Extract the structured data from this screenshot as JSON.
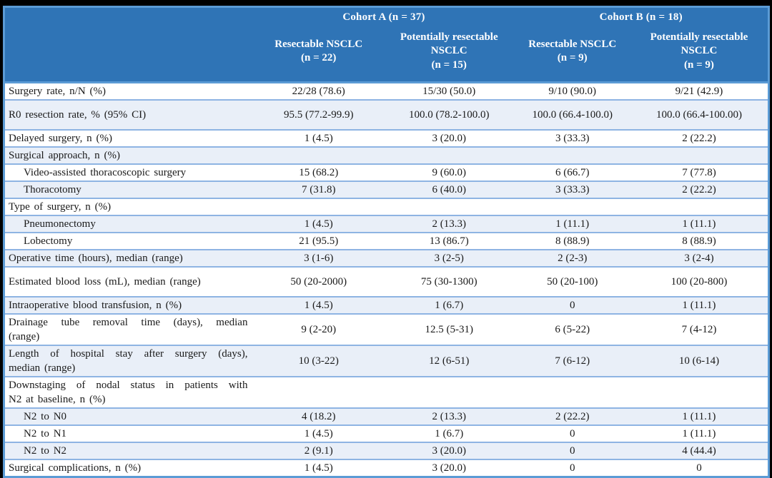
{
  "colors": {
    "page_bg": "#000000",
    "header_bg": "#2F74B6",
    "frame_border": "#5B9BD5",
    "row_alt_bg": "#E9EFF8",
    "row_border": "#8EB4E3",
    "body_text": "#1A1A1A",
    "header_text": "#FFFFFF"
  },
  "table": {
    "groups": [
      {
        "label": "Cohort A (n = 37)"
      },
      {
        "label": "Cohort B (n = 18)"
      }
    ],
    "columns": [
      {
        "title": "Resectable NSCLC",
        "n": "(n = 22)"
      },
      {
        "title": "Potentially resectable NSCLC",
        "n": "(n = 15)"
      },
      {
        "title": "Resectable NSCLC",
        "n": "(n = 9)"
      },
      {
        "title": "Potentially resectable NSCLC",
        "n": "(n = 9)"
      }
    ],
    "rows": [
      {
        "label": "Surgery rate, n/N (%)",
        "indent": false,
        "tall": false,
        "values": [
          "22/28 (78.6)",
          "15/30 (50.0)",
          "9/10 (90.0)",
          "9/21 (42.9)"
        ]
      },
      {
        "label": "R0 resection rate, % (95% CI)",
        "indent": false,
        "tall": true,
        "values": [
          "95.5 (77.2-99.9)",
          "100.0 (78.2-100.0)",
          "100.0 (66.4-100.0)",
          "100.0 (66.4-100.00)"
        ]
      },
      {
        "label": "Delayed surgery, n (%)",
        "indent": false,
        "tall": false,
        "values": [
          "1 (4.5)",
          "3 (20.0)",
          "3 (33.3)",
          "2 (22.2)"
        ]
      },
      {
        "label": "Surgical approach, n (%)",
        "indent": false,
        "tall": false,
        "values": [
          "",
          "",
          "",
          ""
        ]
      },
      {
        "label": "Video-assisted thoracoscopic surgery",
        "indent": true,
        "tall": false,
        "values": [
          "15 (68.2)",
          "9 (60.0)",
          "6 (66.7)",
          "7 (77.8)"
        ]
      },
      {
        "label": "Thoracotomy",
        "indent": true,
        "tall": false,
        "values": [
          "7 (31.8)",
          "6 (40.0)",
          "3 (33.3)",
          "2 (22.2)"
        ]
      },
      {
        "label": "Type of surgery, n (%)",
        "indent": false,
        "tall": false,
        "values": [
          "",
          "",
          "",
          ""
        ]
      },
      {
        "label": "Pneumonectomy",
        "indent": true,
        "tall": false,
        "values": [
          "1 (4.5)",
          "2 (13.3)",
          "1 (11.1)",
          "1 (11.1)"
        ]
      },
      {
        "label": "Lobectomy",
        "indent": true,
        "tall": false,
        "values": [
          "21 (95.5)",
          "13 (86.7)",
          "8 (88.9)",
          "8 (88.9)"
        ]
      },
      {
        "label": "Operative time (hours), median (range)",
        "indent": false,
        "tall": false,
        "values": [
          "3 (1-6)",
          "3 (2-5)",
          "2 (2-3)",
          "3 (2-4)"
        ]
      },
      {
        "label": "Estimated blood loss (mL), median (range)",
        "indent": false,
        "tall": true,
        "values": [
          "50 (20-2000)",
          "75 (30-1300)",
          "50 (20-100)",
          "100 (20-800)"
        ]
      },
      {
        "label": "Intraoperative blood transfusion, n (%)",
        "indent": false,
        "tall": false,
        "values": [
          "1 (4.5)",
          "1 (6.7)",
          "0",
          "1 (11.1)"
        ]
      },
      {
        "label": "Drainage tube removal time (days), median",
        "label2": "(range)",
        "indent": false,
        "tall": false,
        "values": [
          "9 (2-20)",
          "12.5 (5-31)",
          "6 (5-22)",
          "7 (4-12)"
        ]
      },
      {
        "label": "Length of hospital stay after surgery (days),",
        "label2": "median (range)",
        "indent": false,
        "tall": false,
        "values": [
          "10 (3-22)",
          "12 (6-51)",
          "7 (6-12)",
          "10 (6-14)"
        ]
      },
      {
        "label": "Downstaging of nodal status in patients with",
        "label2": "N2 at baseline, n (%)",
        "indent": false,
        "tall": false,
        "values": [
          "",
          "",
          "",
          ""
        ]
      },
      {
        "label": "N2 to N0",
        "indent": true,
        "tall": false,
        "values": [
          "4 (18.2)",
          "2 (13.3)",
          "2 (22.2)",
          "1 (11.1)"
        ]
      },
      {
        "label": "N2 to N1",
        "indent": true,
        "tall": false,
        "values": [
          "1 (4.5)",
          "1 (6.7)",
          "0",
          "1 (11.1)"
        ]
      },
      {
        "label": "N2 to N2",
        "indent": true,
        "tall": false,
        "values": [
          "2 (9.1)",
          "3 (20.0)",
          "0",
          "4 (44.4)"
        ]
      },
      {
        "label": "Surgical complications, n (%)",
        "indent": false,
        "tall": false,
        "values": [
          "1 (4.5)",
          "3 (20.0)",
          "0",
          "0"
        ]
      }
    ]
  }
}
